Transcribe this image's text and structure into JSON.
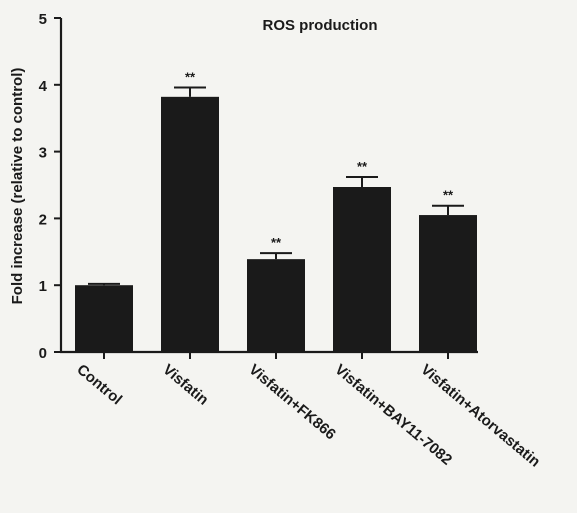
{
  "chart_data": {
    "type": "bar",
    "title": "ROS production",
    "xlabel": "",
    "ylabel": "Fold increase (relative to control)",
    "categories": [
      "Control",
      "Visfatin",
      "Visfatin+FK866",
      "Visfatin+BAY11-7082",
      "Visfatin+Atorvastatin"
    ],
    "values": [
      1.0,
      3.82,
      1.39,
      2.47,
      2.05
    ],
    "errors": [
      0.02,
      0.14,
      0.09,
      0.15,
      0.14
    ],
    "annotations": [
      "",
      "**",
      "**",
      "**",
      "**"
    ],
    "ylim": [
      0,
      5
    ],
    "yticks": [
      "0",
      "1",
      "2",
      "3",
      "4",
      "5"
    ],
    "grid": false,
    "colors": {
      "bar": "#1a1a1a",
      "axis": "#1a1a1a",
      "background": "#f4f4f1"
    }
  }
}
